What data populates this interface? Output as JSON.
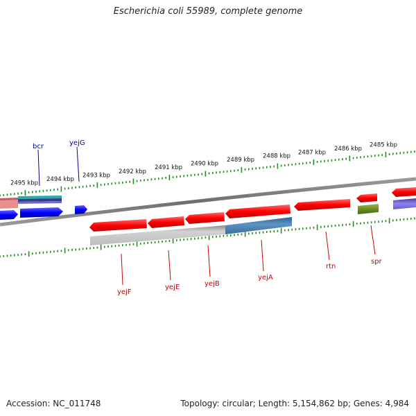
{
  "title": "Escherichia coli 55989, complete genome",
  "footer": {
    "accession": "Accession: NC_011748",
    "summary": "Topology: circular; Length: 5,154,862 bp; Genes: 4,984"
  },
  "scale_labels": [
    "2495 kbp",
    "2494 kbp",
    "2493 kbp",
    "2492 kbp",
    "2491 kbp",
    "2490 kbp",
    "2489 kbp",
    "2488 kbp",
    "2487 kbp",
    "2486 kbp",
    "2485 kbp"
  ],
  "upper_gene_labels": [
    "bcr",
    "yejG"
  ],
  "lower_gene_labels": [
    "yejF",
    "yejE",
    "yejB",
    "yejA",
    "rtn",
    "spr"
  ],
  "colors": {
    "cds": "#ff0000",
    "plus_strand": "#0000ff",
    "ticks": "#228b22",
    "label_upper": "#00008b",
    "label_lower": "#cc0000",
    "backbone": "#7a7a7a",
    "gc_band": "#c0c0c0",
    "blue_band": "#4682b4",
    "cyan_band": "#20b2aa",
    "pink_band": "#f08080",
    "olive": "#6b8e23",
    "purple": "#7b68ee"
  }
}
